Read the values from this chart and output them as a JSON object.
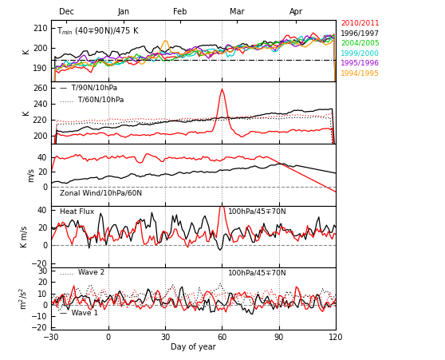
{
  "x_range": [
    -30,
    120
  ],
  "x_ticks": [
    -30,
    0,
    30,
    60,
    90,
    120
  ],
  "month_positions": [
    -22,
    8,
    38,
    68,
    99
  ],
  "month_labels": [
    "Dec",
    "Jan",
    "Feb",
    "Mar",
    "Apr"
  ],
  "vlines": [
    0,
    30,
    60,
    90
  ],
  "legend_years": [
    "2010/2011",
    "1996/1997",
    "2004/2005",
    "1999/2000",
    "1995/1996",
    "1994/1995"
  ],
  "legend_colors": [
    "#ff0000",
    "#000000",
    "#00cc00",
    "#00cccc",
    "#9900cc",
    "#ff9900"
  ],
  "panel1_ylabel": "K",
  "panel1_title": "T$_{min}$ (40∓90N)/475 K",
  "panel1_ylim": [
    183,
    214
  ],
  "panel1_yticks": [
    190,
    200,
    210
  ],
  "panel1_hline": 194,
  "panel2_ylabel": "K",
  "panel2_ylim": [
    190,
    268
  ],
  "panel2_yticks": [
    200,
    220,
    240,
    260
  ],
  "panel2_label_solid": "T/90N/10hPa",
  "panel2_label_dot": "T/60N/10hPa",
  "panel3_ylabel": "m/s",
  "panel3_ylim": [
    -25,
    58
  ],
  "panel3_yticks": [
    0,
    20,
    40
  ],
  "panel3_label": "Zonal Wind/10hPa/60N",
  "panel4_ylabel": "K m/s",
  "panel4_ylim": [
    -25,
    45
  ],
  "panel4_yticks": [
    -20,
    0,
    20,
    40
  ],
  "panel4_label_left": "Heat Flux",
  "panel4_label_right": "100hPa/45∓70N",
  "panel5_ylabel": "m$^2$/s$^2$",
  "panel5_ylim": [
    -22,
    33
  ],
  "panel5_yticks": [
    -20,
    -10,
    0,
    10,
    20,
    30
  ],
  "panel5_label_dot": "Wave 2",
  "panel5_label_solid": "Wave 1",
  "panel5_label_right": "100hPa/45∓70N",
  "xlabel": "Day of year",
  "bg_color": "#ffffff",
  "line_black": "#000000",
  "line_red": "#ff0000"
}
